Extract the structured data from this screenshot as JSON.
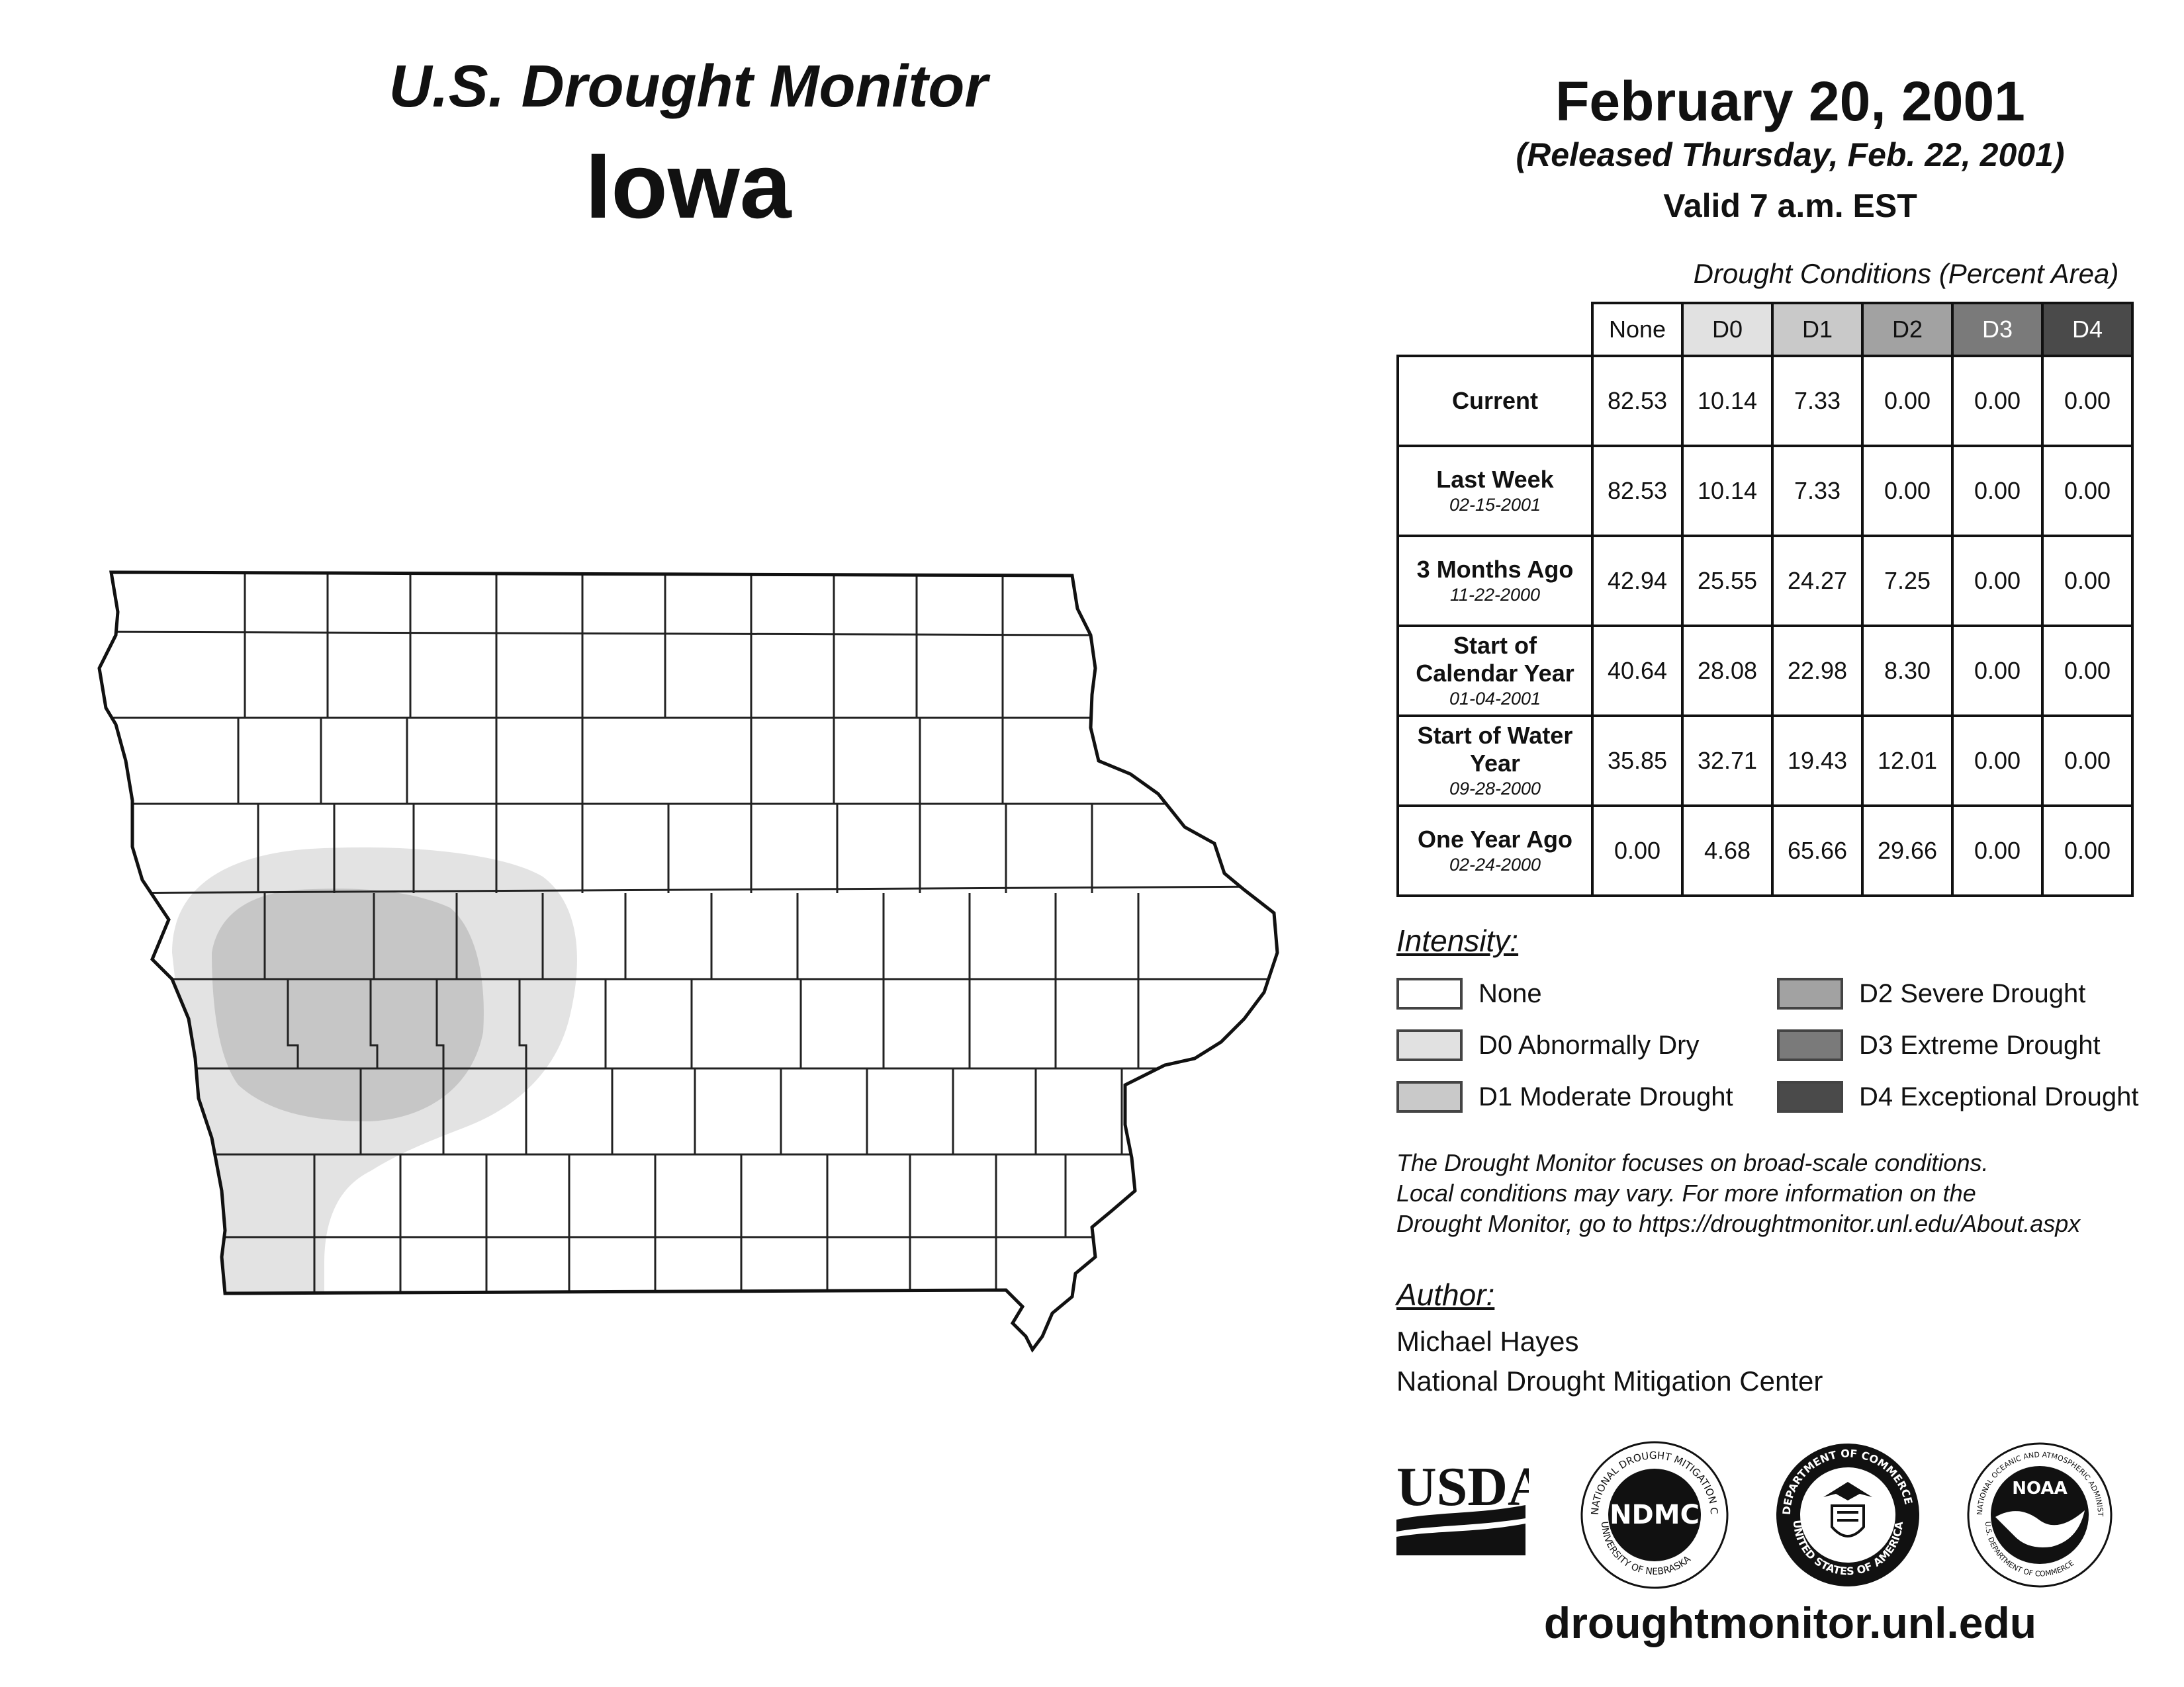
{
  "header": {
    "title": "U.S. Drought Monitor",
    "state": "Iowa",
    "date": "February 20, 2001",
    "released": "(Released Thursday, Feb. 22, 2001)",
    "valid": "Valid 7 a.m. EST"
  },
  "table": {
    "title": "Drought Conditions (Percent Area)",
    "columns": [
      "None",
      "D0",
      "D1",
      "D2",
      "D3",
      "D4"
    ],
    "rows": [
      {
        "label": "Current",
        "sub": "",
        "values": [
          "82.53",
          "10.14",
          "7.33",
          "0.00",
          "0.00",
          "0.00"
        ]
      },
      {
        "label": "Last Week",
        "sub": "02-15-2001",
        "values": [
          "82.53",
          "10.14",
          "7.33",
          "0.00",
          "0.00",
          "0.00"
        ]
      },
      {
        "label": "3 Months Ago",
        "sub": "11-22-2000",
        "values": [
          "42.94",
          "25.55",
          "24.27",
          "7.25",
          "0.00",
          "0.00"
        ]
      },
      {
        "label": "Start of Calendar Year",
        "sub": "01-04-2001",
        "values": [
          "40.64",
          "28.08",
          "22.98",
          "8.30",
          "0.00",
          "0.00"
        ]
      },
      {
        "label": "Start of Water Year",
        "sub": "09-28-2000",
        "values": [
          "35.85",
          "32.71",
          "19.43",
          "12.01",
          "0.00",
          "0.00"
        ]
      },
      {
        "label": "One Year Ago",
        "sub": "02-24-2000",
        "values": [
          "0.00",
          "4.68",
          "65.66",
          "29.66",
          "0.00",
          "0.00"
        ]
      }
    ]
  },
  "legend": {
    "title": "Intensity:",
    "items": [
      {
        "label": "None",
        "color": "#ffffff"
      },
      {
        "label": "D0 Abnormally Dry",
        "color": "#e1e1e1"
      },
      {
        "label": "D1 Moderate Drought",
        "color": "#c9c9c9"
      },
      {
        "label": "D2 Severe Drought",
        "color": "#a2a2a2"
      },
      {
        "label": "D3 Extreme Drought",
        "color": "#7a7a7a"
      },
      {
        "label": "D4 Exceptional Drought",
        "color": "#4a4a4a"
      }
    ]
  },
  "note": {
    "line1": "The Drought Monitor focuses on broad-scale conditions.",
    "line2": "Local conditions may vary. For more information on the",
    "line3": "Drought Monitor, go to https://droughtmonitor.unl.edu/About.aspx"
  },
  "author": {
    "title": "Author:",
    "name": "Michael Hayes",
    "org": "National Drought Mitigation Center"
  },
  "logos": {
    "usda": "USDA",
    "ndmc": "NDMC",
    "ndmc_ring": "NATIONAL DROUGHT MITIGATION CENTER",
    "ndmc_bottom": "UNIVERSITY OF NEBRASKA",
    "doc_ring": "DEPARTMENT OF COMMERCE",
    "doc_bottom": "UNITED STATES OF AMERICA",
    "noaa": "NOAA",
    "noaa_ring": "NATIONAL OCEANIC AND ATMOSPHERIC ADMINISTRATION",
    "noaa_bottom": "U.S. DEPARTMENT OF COMMERCE"
  },
  "footer": {
    "site": "droughtmonitor.unl.edu"
  },
  "map": {
    "d0_color": "#e3e3e3",
    "d1_color": "#c6c6c6",
    "county_line_color": "#222222"
  }
}
